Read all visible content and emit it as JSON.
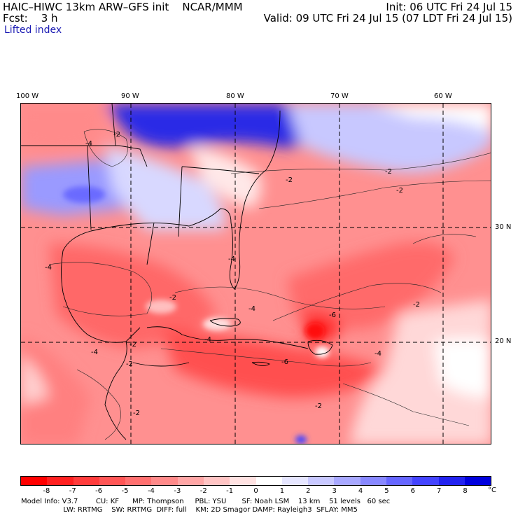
{
  "header": {
    "title": "HAIC–HIWC 13km ARW–GFS init    NCAR/MMM",
    "init": "Init: 06 UTC Fri 24 Jul 15",
    "fcst": "Fcst:    3 h",
    "valid": "Valid: 09 UTC Fri 24 Jul 15 (07 LDT Fri 24 Jul 15)",
    "field": "Lifted index"
  },
  "map": {
    "lon_labels": [
      "100 W",
      "90 W",
      "80 W",
      "70 W",
      "60 W"
    ],
    "lat_labels": [
      "30 N",
      "20 N"
    ],
    "contour_labels": [
      "-2",
      "-4",
      "-4",
      "-2",
      "-2",
      "-2",
      "-2",
      "-4",
      "-4",
      "-2",
      "-4",
      "-6",
      "-6",
      "-4",
      "-2",
      "-2",
      "-4",
      "-2",
      "-2"
    ]
  },
  "colorbar": {
    "ticks": [
      "-8",
      "-7",
      "-6",
      "-5",
      "-4",
      "-3",
      "-2",
      "-1",
      "0",
      "1",
      "2",
      "3",
      "4",
      "5",
      "6",
      "7",
      "8"
    ],
    "unit": "°C",
    "colors": [
      "#ff0000",
      "#ff2020",
      "#ff3c3c",
      "#ff5656",
      "#ff7070",
      "#ff8a8a",
      "#ffa6a6",
      "#ffc4c4",
      "#ffe2e2",
      "#ffffff",
      "#e6e6ff",
      "#c8c8ff",
      "#a8a8ff",
      "#8888ff",
      "#6666ff",
      "#4444ff",
      "#2222f0",
      "#0000dd"
    ]
  },
  "footer": {
    "line1": "Model Info: V3.7        CU: KF      MP: Thompson     PBL: YSU       SF: Noah LSM    13 km    51 levels   60 sec",
    "line2": "                   LW: RRTMG    SW: RRTMG  DIFF: full    KM: 2D Smagor DAMP: Rayleigh3  SFLAY: MM5"
  }
}
